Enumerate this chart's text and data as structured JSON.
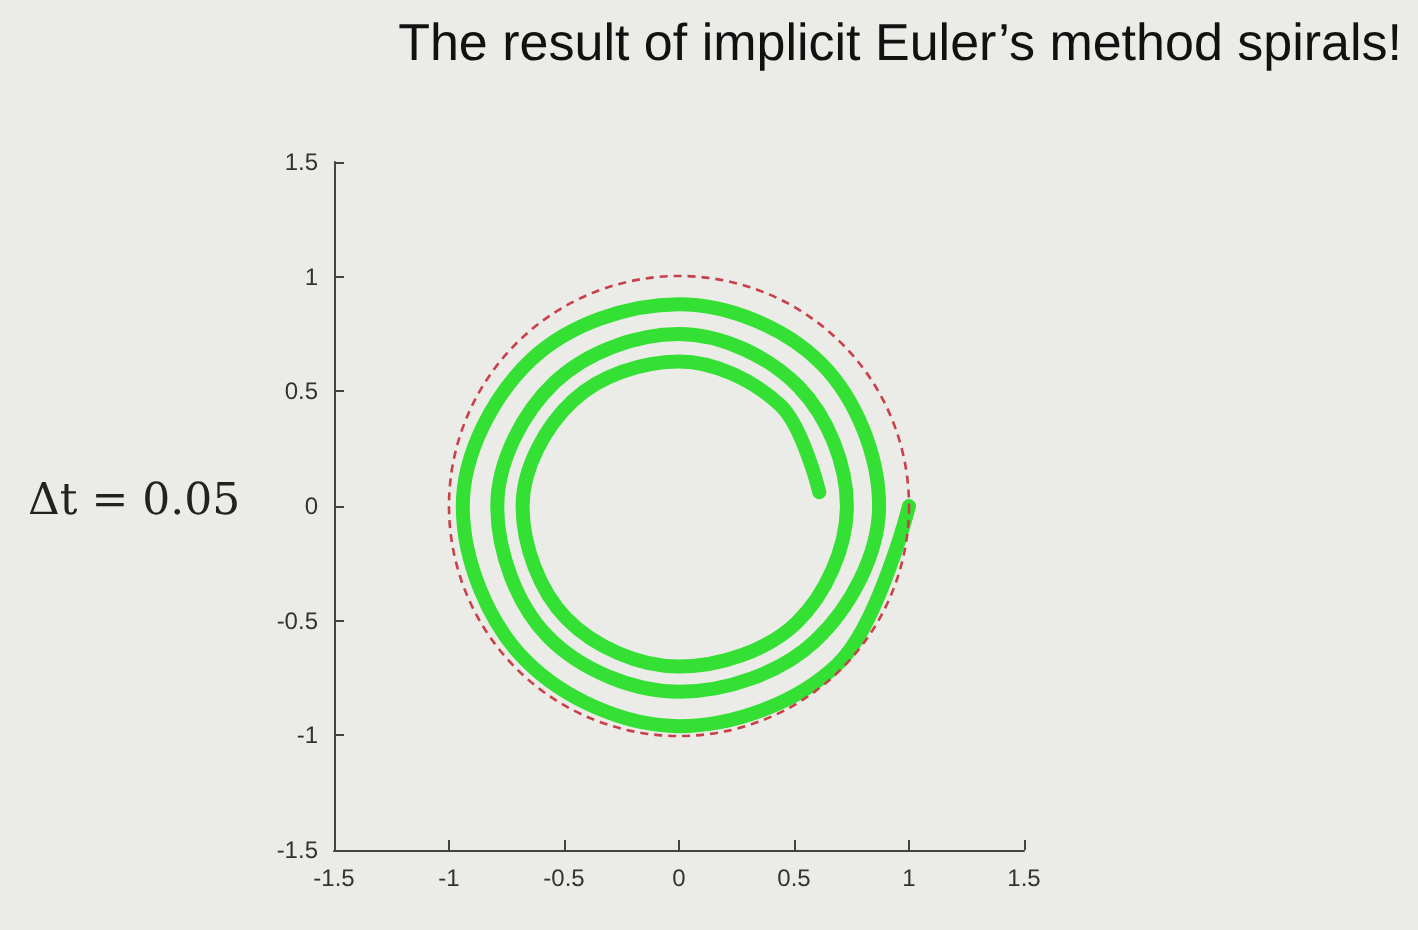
{
  "chart_data": {
    "type": "line",
    "title": "The result of implicit Euler’s method spirals!",
    "annotations": [
      "Δt = 0.05"
    ],
    "xlim": [
      -1.5,
      1.5
    ],
    "ylim": [
      -1.5,
      1.5
    ],
    "xticks": [
      -1.5,
      -1,
      -0.5,
      0,
      0.5,
      1,
      1.5
    ],
    "yticks": [
      -1.5,
      -1,
      -0.5,
      0,
      0.5,
      1,
      1.5
    ],
    "series": [
      {
        "color": "#33e033",
        "line_style": "solid",
        "x": [
          1,
          0.69,
          0,
          -0.67,
          -0.94,
          -0.64,
          0,
          0.62,
          0.87,
          0.59,
          0,
          -0.57,
          -0.79,
          -0.54,
          0,
          0.52,
          0.73,
          0.51,
          0,
          -0.49,
          -0.68,
          -0.46,
          0,
          0.44,
          0.61
        ],
        "values": [
          0,
          -0.69,
          -0.96,
          -0.67,
          0,
          0.64,
          0.88,
          0.62,
          0,
          -0.59,
          -0.81,
          -0.57,
          0,
          0.54,
          0.75,
          0.52,
          0,
          -0.51,
          -0.7,
          -0.49,
          0,
          0.46,
          0.63,
          0.44,
          0.06
        ]
      }
    ]
  }
}
